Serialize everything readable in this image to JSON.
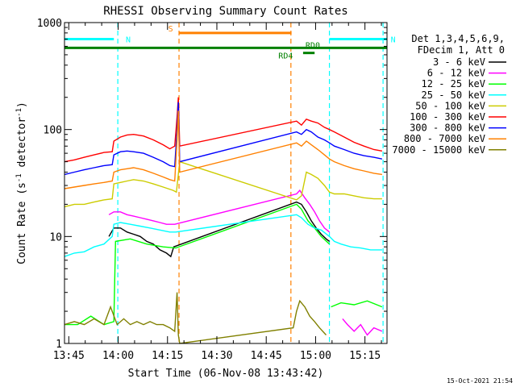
{
  "chart_data": {
    "type": "line",
    "title": "RHESSI Observing Summary Count Rates",
    "xlabel": "Start Time (06-Nov-08 13:43:42)",
    "ylabel": "Count Rate (s",
    "ylabel_sup": "-1",
    "ylabel_tail": " detector",
    "ylabel_sup2": "-1",
    "ylabel_close": ")",
    "x_unit": "minutes after 13:43:42",
    "xlim": [
      0,
      98
    ],
    "ylim": [
      1,
      1000
    ],
    "yscale": "log",
    "grid": false,
    "legend_position": "right",
    "x_ticks": [
      {
        "label": "13:45",
        "value": 1.3
      },
      {
        "label": "14:00",
        "value": 16.3
      },
      {
        "label": "14:15",
        "value": 31.3
      },
      {
        "label": "14:30",
        "value": 46.3
      },
      {
        "label": "14:45",
        "value": 61.3
      },
      {
        "label": "15:00",
        "value": 76.3
      },
      {
        "label": "15:15",
        "value": 91.3
      }
    ],
    "y_ticks": [
      {
        "label": "1",
        "value": 1
      },
      {
        "label": "10",
        "value": 10
      },
      {
        "label": "100",
        "value": 100
      },
      {
        "label": "1000",
        "value": 1000
      }
    ],
    "legend_header": [
      "Det 1,3,4,5,6,9,",
      "FDecim 1, Att 0"
    ],
    "timestamp": "15-Oct-2021 21:54",
    "flags": [
      {
        "label": "N",
        "color": "#00ffff",
        "start": 0,
        "end": 15,
        "level": 700
      },
      {
        "label": "N",
        "color": "#00ffff",
        "start": 80.5,
        "end": 98,
        "level": 700
      },
      {
        "label": "S",
        "color": "#ff8000",
        "start": 34.7,
        "end": 69,
        "level": 800
      },
      {
        "label": "RD4",
        "color": "#008000",
        "start": 0,
        "end": 98,
        "level": 580
      },
      {
        "label": "RD0",
        "color": "#008000",
        "start": 72.5,
        "end": 76,
        "level": 520
      }
    ],
    "vlines": [
      {
        "x": 16.2,
        "color": "#00ffff"
      },
      {
        "x": 34.8,
        "color": "#ff8000"
      },
      {
        "x": 68.8,
        "color": "#ff8000"
      },
      {
        "x": 80.5,
        "color": "#00ffff"
      },
      {
        "x": 96.8,
        "color": "#00ffff"
      }
    ],
    "series": [
      {
        "name": "3 - 6 keV",
        "color": "#000000",
        "x": [
          13.5,
          15,
          17,
          19,
          21,
          23,
          25,
          27,
          29,
          31,
          32.3,
          33.2,
          70.5,
          72,
          73.5,
          75,
          76.5,
          78,
          79.5,
          80.5
        ],
        "y": [
          10,
          12,
          12,
          11,
          10.5,
          10,
          9,
          8.5,
          7.5,
          7,
          6.5,
          8,
          21,
          20,
          17,
          14,
          12,
          10.5,
          9.5,
          9
        ]
      },
      {
        "name": "6 - 12 keV",
        "color": "#ff00ff",
        "x": [
          13.5,
          15,
          17,
          19,
          21,
          23,
          25,
          27,
          29,
          31,
          33.5,
          70.5,
          71.5,
          73,
          74.5,
          76,
          77.5,
          79,
          80.5
        ],
        "y": [
          16,
          17,
          17,
          16,
          15.5,
          15,
          14.5,
          14,
          13.5,
          13,
          13,
          25,
          27,
          23,
          20,
          17,
          14,
          12,
          11
        ],
        "x2": [
          84.5,
          86,
          88,
          90,
          92,
          94,
          96.5
        ],
        "y2": [
          1.7,
          1.5,
          1.3,
          1.5,
          1.2,
          1.4,
          1.3
        ]
      },
      {
        "name": "12 - 25 keV",
        "color": "#00ff00",
        "x": [
          0,
          4,
          8,
          12,
          15,
          15.5,
          20,
          25,
          30,
          33.8,
          70.5,
          72,
          74,
          76,
          78,
          80.5
        ],
        "y": [
          1.5,
          1.5,
          1.8,
          1.5,
          1.6,
          9,
          9.5,
          8.5,
          8,
          7.8,
          20,
          18,
          14,
          12,
          10,
          8.5
        ],
        "x2": [
          81,
          84,
          88,
          92,
          96.5
        ],
        "y2": [
          2.2,
          2.4,
          2.3,
          2.5,
          2.2
        ]
      },
      {
        "name": "25 - 50 keV",
        "color": "#00ffff",
        "x": [
          0,
          3,
          6,
          9,
          12,
          14.5,
          15,
          17,
          20,
          23,
          26,
          29,
          32,
          33.8,
          70.5,
          72,
          74,
          76,
          78,
          80.5,
          82,
          84,
          87,
          90,
          93,
          96.5
        ],
        "y": [
          6.5,
          7,
          7.2,
          8,
          8.5,
          10,
          13,
          13.5,
          13,
          12.5,
          12,
          11.5,
          11,
          11,
          16,
          15,
          13,
          12,
          11.5,
          10,
          9,
          8.5,
          8,
          7.8,
          7.5,
          7.5
        ]
      },
      {
        "name": "50 - 100 keV",
        "color": "#cccc00",
        "x": [
          0,
          3,
          6,
          9,
          12,
          14.5,
          15,
          17,
          19,
          21,
          24,
          27,
          30,
          33,
          34,
          35,
          70.5,
          72,
          73.5,
          75,
          77,
          79,
          80.5,
          82,
          85,
          88,
          91,
          94,
          96.5
        ],
        "y": [
          19,
          20,
          20,
          21,
          22,
          22.5,
          31,
          32,
          33,
          34,
          33,
          31,
          29,
          27,
          26,
          50,
          22,
          24,
          40,
          38,
          35,
          30,
          26,
          25,
          25,
          24,
          23,
          22.5,
          22.5
        ]
      },
      {
        "name": "100 - 300 keV",
        "color": "#ff0000",
        "x": [
          0,
          3,
          6,
          9,
          12,
          14.5,
          15,
          17,
          19,
          21,
          24,
          27,
          30,
          32,
          33.5,
          34.2,
          34.6,
          35,
          70.5,
          72,
          73.5,
          75,
          77,
          79,
          80.5,
          82,
          85,
          88,
          91,
          94,
          96.5
        ],
        "y": [
          50,
          52,
          55,
          58,
          61,
          62,
          78,
          85,
          89,
          90,
          87,
          80,
          72,
          66,
          70,
          130,
          200,
          70,
          120,
          110,
          125,
          120,
          115,
          105,
          100,
          95,
          85,
          76,
          70,
          65,
          63
        ]
      },
      {
        "name": "300 - 800 keV",
        "color": "#0000ff",
        "x": [
          0,
          3,
          6,
          9,
          12,
          14.5,
          15,
          17,
          19,
          21,
          24,
          27,
          30,
          32,
          33.5,
          34.2,
          34.6,
          35,
          70.5,
          72,
          73.5,
          75,
          77,
          79,
          80.5,
          82,
          85,
          88,
          91,
          94,
          96.5
        ],
        "y": [
          38,
          40,
          42,
          44,
          46,
          47,
          58,
          62,
          63,
          62,
          60,
          55,
          50,
          46,
          45,
          100,
          180,
          50,
          95,
          90,
          100,
          95,
          85,
          80,
          75,
          70,
          65,
          60,
          57,
          55,
          53
        ]
      },
      {
        "name": "800 - 7000 keV",
        "color": "#ff8000",
        "x": [
          0,
          3,
          6,
          9,
          12,
          14.5,
          15,
          17,
          19,
          21,
          24,
          27,
          30,
          32,
          33.5,
          34.2,
          34.6,
          35,
          70.5,
          72,
          73.5,
          75,
          77,
          79,
          80.5,
          82,
          85,
          88,
          91,
          94,
          96.5
        ],
        "y": [
          28,
          29,
          30,
          31,
          32,
          33,
          40,
          42,
          43,
          44,
          42,
          39,
          36,
          34,
          33,
          80,
          150,
          40,
          75,
          70,
          78,
          72,
          65,
          58,
          53,
          50,
          46,
          43,
          41,
          39,
          38
        ]
      },
      {
        "name": "7000 - 15000 keV",
        "color": "#808000",
        "x": [
          0,
          3,
          6,
          9,
          12,
          14,
          16,
          18,
          20,
          22,
          24,
          26,
          28,
          30,
          32,
          33.5,
          34.2,
          34.6,
          35,
          69.5,
          70.5,
          71.5,
          73,
          74.5,
          76,
          77.5,
          79.5
        ],
        "y": [
          1.5,
          1.6,
          1.5,
          1.7,
          1.5,
          2.2,
          1.5,
          1.7,
          1.5,
          1.6,
          1.5,
          1.6,
          1.5,
          1.5,
          1.4,
          1.3,
          3,
          1.2,
          1,
          1.4,
          2,
          2.5,
          2.2,
          1.8,
          1.6,
          1.4,
          1.2
        ]
      }
    ]
  }
}
